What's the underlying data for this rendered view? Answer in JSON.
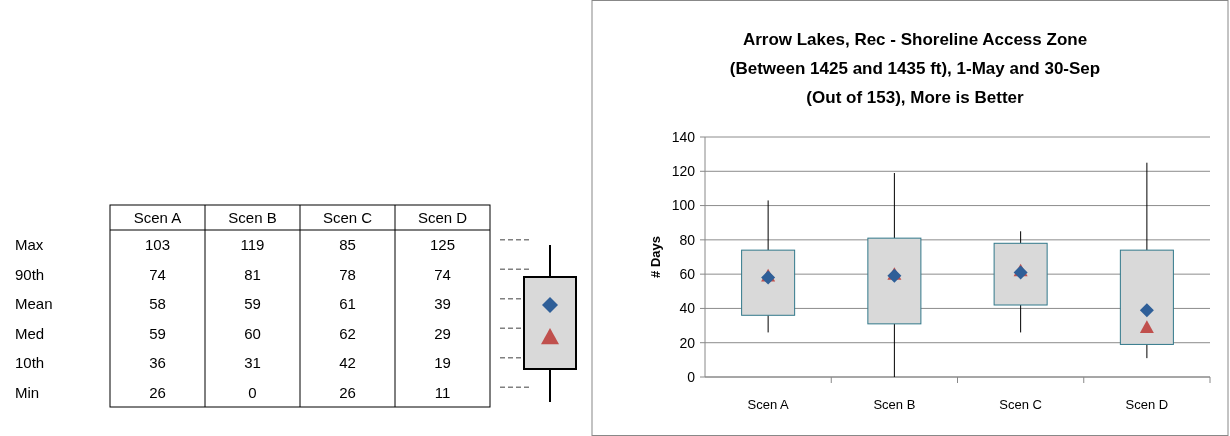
{
  "chart_data": [
    {
      "type": "heatmap",
      "categories": [
        "Scen A",
        "Scen B",
        "Scen C",
        "Scen D"
      ],
      "y_categories": [
        "Max",
        "90th",
        "Mean",
        "Med",
        "10th",
        "Min"
      ],
      "cells": [
        [
          103,
          119,
          85,
          125
        ],
        [
          74,
          81,
          78,
          74
        ],
        [
          58,
          59,
          61,
          39
        ],
        [
          59,
          60,
          62,
          29
        ],
        [
          36,
          31,
          42,
          19
        ],
        [
          26,
          0,
          26,
          11
        ]
      ],
      "data_labels": true
    },
    {
      "type": "box",
      "title": "Arrow Lakes, Rec - Shoreline Access Zone\n(Between 1425 and 1435 ft),  1-May and 30-Sep\n(Out of 153), More is Better",
      "ylabel": "# Days",
      "categories": [
        "Scen A",
        "Scen B",
        "Scen C",
        "Scen D"
      ],
      "series": [
        {
          "color": "#d9d9d9",
          "boxes": [
            {
              "low": 26,
              "q1": 36,
              "median": 59,
              "q3": 74,
              "high": 103,
              "mean": 58
            },
            {
              "low": 0,
              "q1": 31,
              "median": 60,
              "q3": 81,
              "high": 119,
              "mean": 59
            },
            {
              "low": 26,
              "q1": 42,
              "median": 62,
              "q3": 78,
              "high": 85,
              "mean": 61
            },
            {
              "low": 11,
              "q1": 19,
              "median": 29,
              "q3": 74,
              "high": 125,
              "mean": 39
            }
          ]
        }
      ],
      "ylim": [
        0,
        140
      ],
      "yticks": [
        0,
        20,
        40,
        60,
        80,
        100,
        120,
        140
      ],
      "grid": "y"
    }
  ]
}
